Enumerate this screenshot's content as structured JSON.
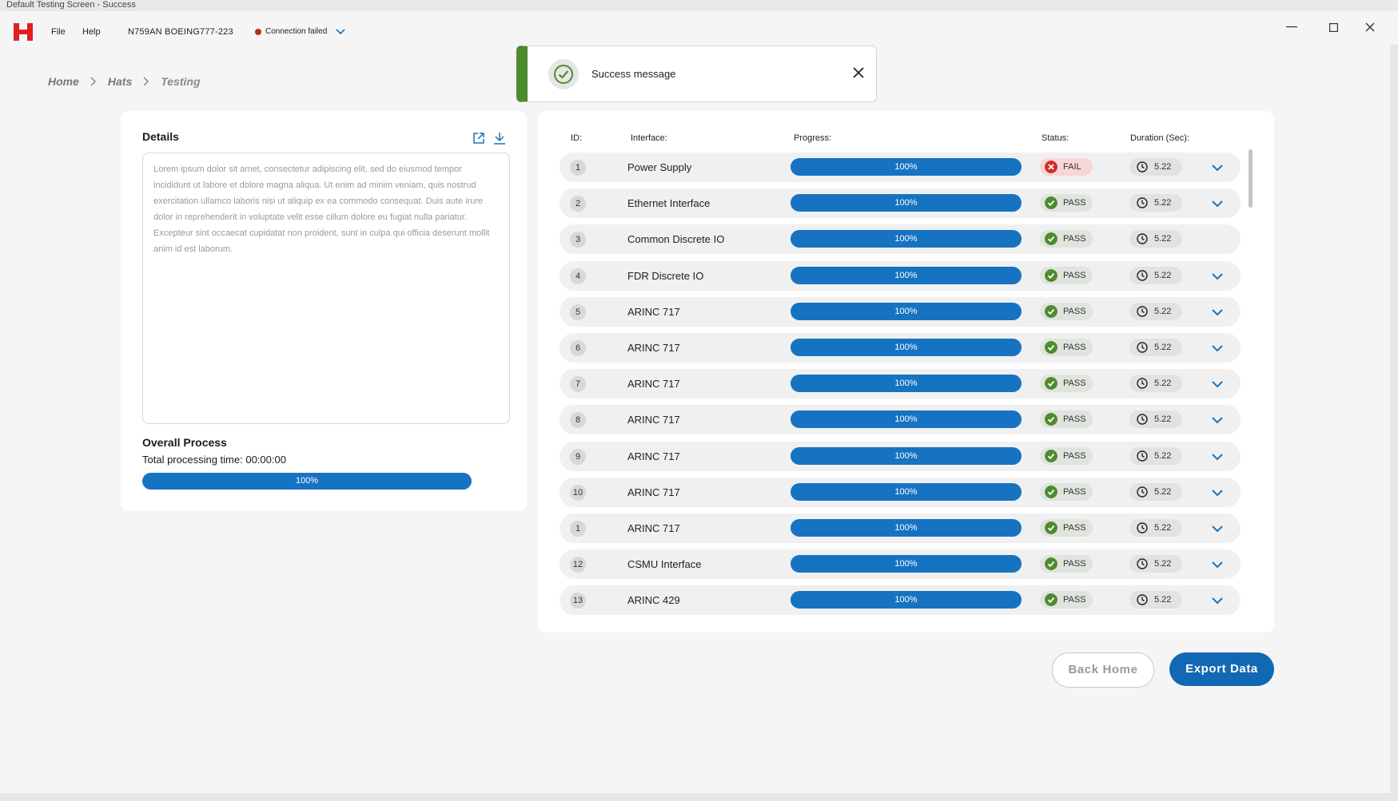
{
  "window": {
    "title": "Default Testing Screen - Success"
  },
  "menubar": {
    "logo": "H",
    "file": "File",
    "help": "Help",
    "tail_number": "N759AN BOEING777-223",
    "connection": "Connection failed"
  },
  "toast": {
    "message": "Success message",
    "icon": "check-circle-icon"
  },
  "breadcrumb": {
    "home": "Home",
    "hats": "Hats",
    "current": "Testing"
  },
  "details": {
    "title": "Details",
    "text": "Lorem ipsum dolor sit amet, consectetur adipiscing elit, sed do eiusmod tempor incididunt ut labore et dolore magna aliqua. Ut enim ad minim veniam, quis nostrud exercitation ullamco laboris nisi ut aliquip ex ea commodo consequat. Duis aute irure dolor in reprehenderit in voluptate velit esse cillum dolore eu fugiat nulla pariatur. Excepteur sint occaecat cupidatat non proident, sunt in culpa qui officia deserunt mollit anim id est laborum."
  },
  "overall": {
    "title": "Overall Process",
    "time": "Total processing time: 00:00:00",
    "progress": "100%"
  },
  "table": {
    "headers": {
      "id": "ID:",
      "interface": "Interface:",
      "progress": "Progress:",
      "status": "Status:",
      "duration": "Duration (Sec):"
    },
    "rows": [
      {
        "id": "1",
        "interface": "Power Supply",
        "progress": "100%",
        "status": "FAIL",
        "duration": "5.22",
        "expandable": true
      },
      {
        "id": "2",
        "interface": "Ethernet Interface",
        "progress": "100%",
        "status": "PASS",
        "duration": "5.22",
        "expandable": true
      },
      {
        "id": "3",
        "interface": "Common Discrete IO",
        "progress": "100%",
        "status": "PASS",
        "duration": "5.22",
        "expandable": false
      },
      {
        "id": "4",
        "interface": "FDR Discrete IO",
        "progress": "100%",
        "status": "PASS",
        "duration": "5.22",
        "expandable": true
      },
      {
        "id": "5",
        "interface": "ARINC 717",
        "progress": "100%",
        "status": "PASS",
        "duration": "5.22",
        "expandable": true
      },
      {
        "id": "6",
        "interface": "ARINC 717",
        "progress": "100%",
        "status": "PASS",
        "duration": "5.22",
        "expandable": true
      },
      {
        "id": "7",
        "interface": "ARINC 717",
        "progress": "100%",
        "status": "PASS",
        "duration": "5.22",
        "expandable": true
      },
      {
        "id": "8",
        "interface": "ARINC 717",
        "progress": "100%",
        "status": "PASS",
        "duration": "5.22",
        "expandable": true
      },
      {
        "id": "9",
        "interface": "ARINC 717",
        "progress": "100%",
        "status": "PASS",
        "duration": "5.22",
        "expandable": true
      },
      {
        "id": "10",
        "interface": "ARINC 717",
        "progress": "100%",
        "status": "PASS",
        "duration": "5.22",
        "expandable": true
      },
      {
        "id": "1",
        "interface": "ARINC 717",
        "progress": "100%",
        "status": "PASS",
        "duration": "5.22",
        "expandable": true
      },
      {
        "id": "12",
        "interface": "CSMU Interface",
        "progress": "100%",
        "status": "PASS",
        "duration": "5.22",
        "expandable": true
      },
      {
        "id": "13",
        "interface": "ARINC 429",
        "progress": "100%",
        "status": "PASS",
        "duration": "5.22",
        "expandable": true
      }
    ]
  },
  "buttons": {
    "back": "Back Home",
    "export": "Export Data"
  },
  "colors": {
    "accent": "#1673c2",
    "pass": "#4e8b2e",
    "fail": "#d42b2b",
    "connection_dot": "#c0281e"
  }
}
